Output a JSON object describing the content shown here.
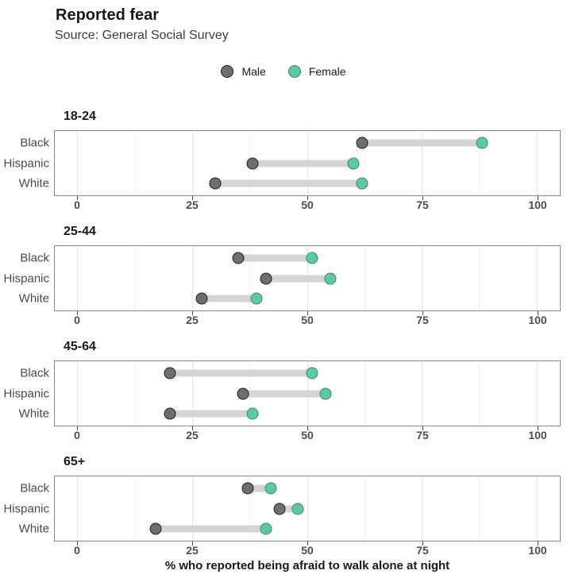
{
  "header": {
    "title": "Reported fear",
    "subtitle": "Source: General Social Survey"
  },
  "legend": {
    "items": [
      {
        "label": "Male",
        "fill": "#6E6E6E",
        "stroke": "#1E1E1E"
      },
      {
        "label": "Female",
        "fill": "#5FC7A3",
        "stroke": "#2F8D72"
      }
    ]
  },
  "chart_data": {
    "type": "dumbbell",
    "title": "Reported fear",
    "subtitle": "Source: General Social Survey",
    "xlabel": "% who reported being afraid to walk alone at night",
    "x_axis": {
      "ticks": [
        0,
        25,
        50,
        75,
        100
      ],
      "minor_gridlines": [
        12.5,
        37.5,
        62.5,
        87.5
      ],
      "range": [
        -5,
        105
      ],
      "grid": "on"
    },
    "legend_position": "top-center",
    "series": [
      {
        "name": "Male",
        "fill": "#6E6E6E",
        "stroke": "#1E1E1E"
      },
      {
        "name": "Female",
        "fill": "#5FC7A3",
        "stroke": "#2F8D72"
      }
    ],
    "facets": [
      {
        "title": "18-24",
        "rows": [
          {
            "label": "Black",
            "male": 62,
            "female": 88
          },
          {
            "label": "Hispanic",
            "male": 38,
            "female": 60
          },
          {
            "label": "White",
            "male": 30,
            "female": 62
          }
        ]
      },
      {
        "title": "25-44",
        "rows": [
          {
            "label": "Black",
            "male": 35,
            "female": 51
          },
          {
            "label": "Hispanic",
            "male": 41,
            "female": 55
          },
          {
            "label": "White",
            "male": 27,
            "female": 39
          }
        ]
      },
      {
        "title": "45-64",
        "rows": [
          {
            "label": "Black",
            "male": 20,
            "female": 51
          },
          {
            "label": "Hispanic",
            "male": 36,
            "female": 54
          },
          {
            "label": "White",
            "male": 20,
            "female": 38
          }
        ]
      },
      {
        "title": "65+",
        "rows": [
          {
            "label": "Black",
            "male": 37,
            "female": 42
          },
          {
            "label": "Hispanic",
            "male": 44,
            "female": 48
          },
          {
            "label": "White",
            "male": 17,
            "female": 41
          }
        ]
      }
    ],
    "style": {
      "connector": "#D4D4D4",
      "grid_major": "#E6E6E6",
      "grid_minor": "#F2F2F2",
      "panel_border": "#8A8A8A",
      "tick_text": "#4D4D4D",
      "row_label_text": "#4A4A4A",
      "title_text": "#1A1A1A"
    }
  }
}
